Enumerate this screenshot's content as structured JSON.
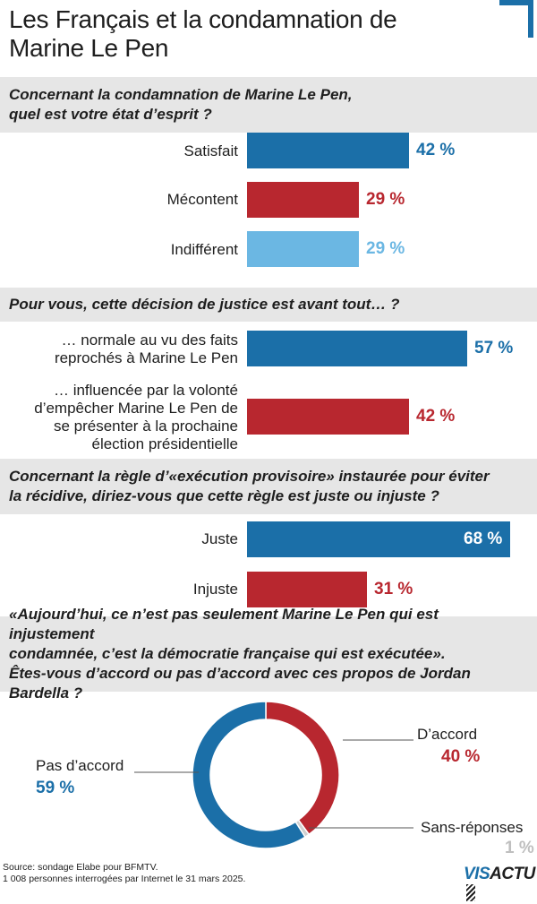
{
  "title": "Les Français et la condamnation de Marine Le Pen",
  "colors": {
    "blue": "#1b6fa8",
    "red": "#b8272f",
    "lightblue": "#6bb7e3",
    "grey": "#d0d0d0"
  },
  "chart_data": [
    {
      "type": "bar",
      "question": "Concernant la condamnation de Marine Le Pen, quel est votre état d’esprit ?",
      "categories": [
        "Satisfait",
        "Mécontent",
        "Indifférent"
      ],
      "values": [
        42,
        29,
        29
      ],
      "value_labels": [
        "42 %",
        "29 %",
        "29 %"
      ],
      "unit": "%"
    },
    {
      "type": "bar",
      "question": "Pour vous, cette décision de justice est avant tout… ?",
      "categories": [
        "… normale au vu des faits reprochés à Marine Le Pen",
        "… influencée par la volonté d’empêcher Marine Le Pen de se présenter à la prochaine élection présidentielle"
      ],
      "values": [
        57,
        42
      ],
      "value_labels": [
        "57 %",
        "42 %"
      ],
      "unit": "%"
    },
    {
      "type": "bar",
      "question": "Concernant la règle d’«exécution provisoire» instaurée pour éviter la récidive, diriez-vous que cette règle est juste ou injuste ?",
      "categories": [
        "Juste",
        "Injuste"
      ],
      "values": [
        68,
        31
      ],
      "value_labels": [
        "68 %",
        "31 %"
      ],
      "unit": "%"
    },
    {
      "type": "pie",
      "question": "«Aujourd’hui, ce n’est pas seulement Marine Le Pen qui est injustement condamnée, c’est la démocratie française qui est exécutée». Êtes-vous d’accord ou pas d’accord avec ces propos de Jordan Bardella ?",
      "categories": [
        "D’accord",
        "Sans-réponses",
        "Pas d’accord"
      ],
      "values": [
        40,
        1,
        59
      ],
      "value_labels": [
        "40 %",
        "1 %",
        "59 %"
      ],
      "unit": "%"
    }
  ],
  "q1_line1": "Concernant la condamnation de Marine Le Pen,",
  "q1_line2": "quel est votre état d’esprit ?",
  "q2_label1_line1": "… normale au vu des faits",
  "q2_label1_line2": "reprochés à Marine Le Pen",
  "q2_label2_line1": "… influencée par la volonté",
  "q2_label2_line2": "d’empêcher Marine Le Pen de",
  "q2_label2_line3": "se présenter à la prochaine",
  "q2_label2_line4": "élection présidentielle",
  "q3_line1": "Concernant la règle d’«exécution provisoire» instaurée pour éviter",
  "q3_line2": "la récidive, diriez-vous que cette règle est juste ou injuste ?",
  "q4_line1": "«Aujourd’hui, ce n’est pas seulement Marine Le Pen qui est injustement",
  "q4_line2": "condamnée, c’est la démocratie française qui est exécutée».",
  "q4_line3": "Êtes-vous d’accord ou pas d’accord avec ces propos de Jordan Bardella ?",
  "source_line1": "Source: sondage Elabe pour BFMTV.",
  "source_line2": "1 008 personnes interrogées par Internet le 31 mars 2025.",
  "logo": {
    "part1": "VIS",
    "part2": "ACTU"
  }
}
